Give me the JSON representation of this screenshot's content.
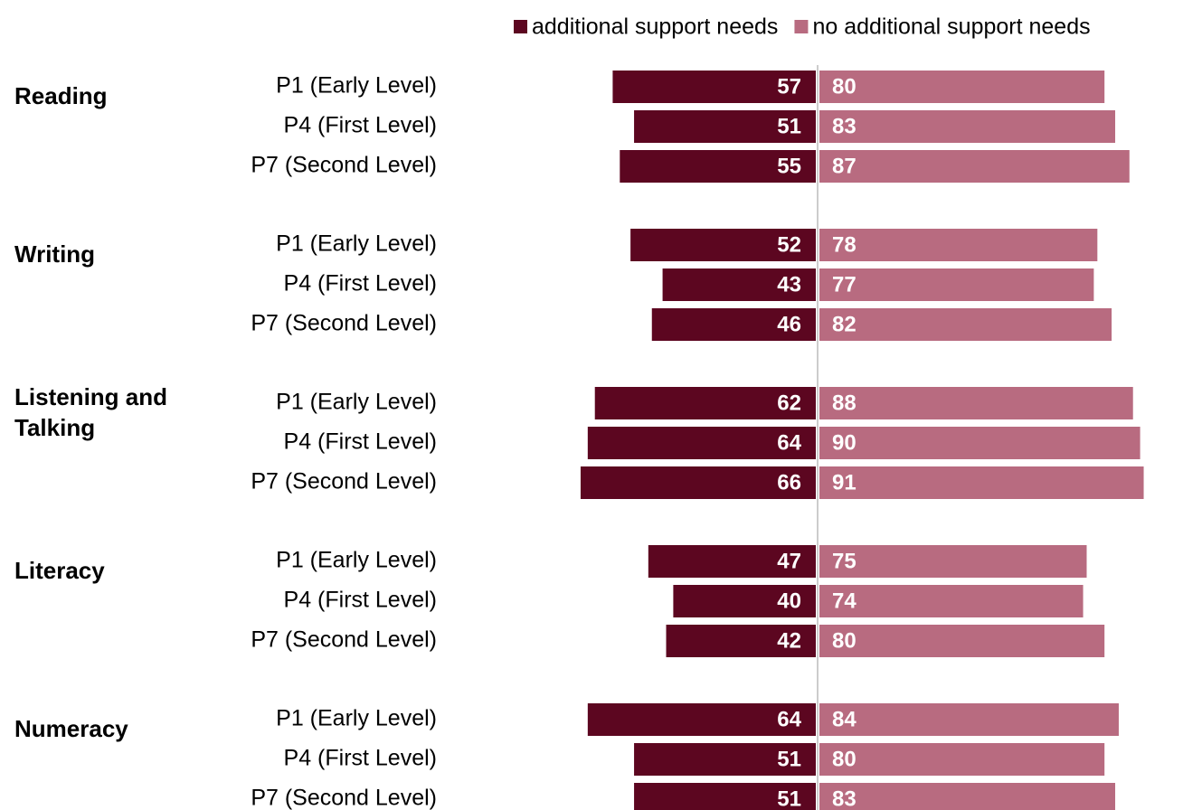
{
  "chart_data": {
    "type": "bar",
    "groups": [
      {
        "label": "Reading",
        "categories": [
          "P1 (Early Level)",
          "P4 (First Level)",
          "P7 (Second Level)"
        ]
      },
      {
        "label": "Writing",
        "categories": [
          "P1 (Early Level)",
          "P4 (First Level)",
          "P7 (Second Level)"
        ]
      },
      {
        "label": "Listening and Talking",
        "categories": [
          "P1 (Early Level)",
          "P4 (First Level)",
          "P7 (Second Level)"
        ]
      },
      {
        "label": "Literacy",
        "categories": [
          "P1 (Early Level)",
          "P4 (First Level)",
          "P7 (Second Level)"
        ]
      },
      {
        "label": "Numeracy",
        "categories": [
          "P1 (Early Level)",
          "P4 (First Level)",
          "P7 (Second Level)"
        ]
      }
    ],
    "series": [
      {
        "name": "additional support needs",
        "color": "#5c0620",
        "values": [
          57,
          51,
          55,
          52,
          43,
          46,
          62,
          64,
          66,
          47,
          40,
          42,
          64,
          51,
          51
        ]
      },
      {
        "name": "no additional support needs",
        "color": "#b86b80",
        "values": [
          80,
          83,
          87,
          78,
          77,
          82,
          88,
          90,
          91,
          75,
          74,
          80,
          84,
          80,
          83
        ]
      }
    ]
  }
}
